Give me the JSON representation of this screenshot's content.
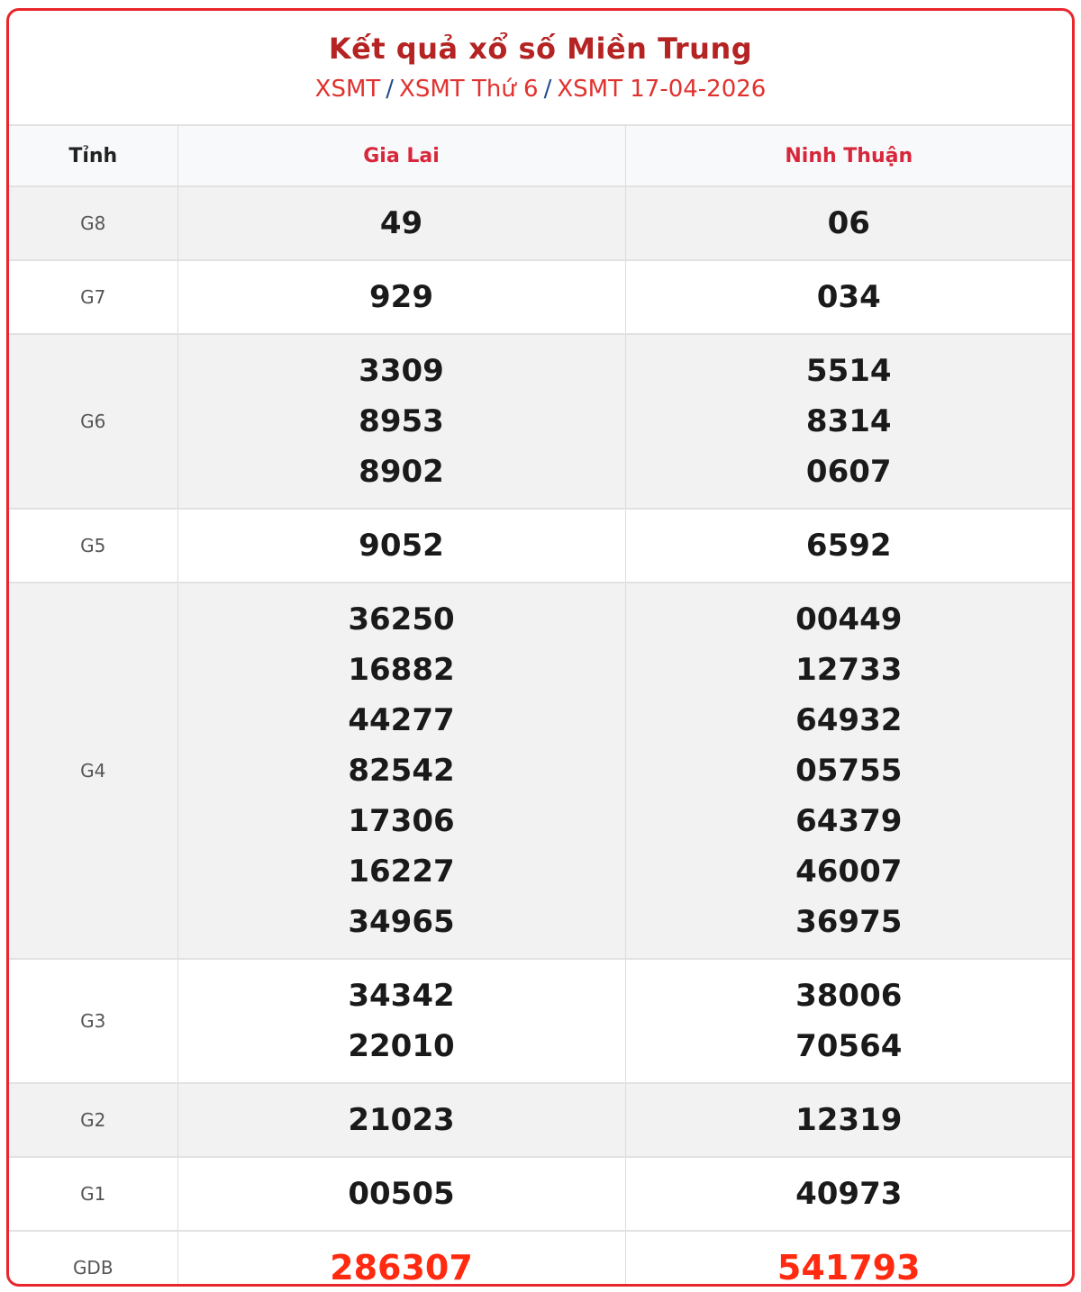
{
  "header": {
    "title": "Kết quả xổ số Miền Trung",
    "breadcrumb": [
      {
        "label": "XSMT"
      },
      {
        "label": "XSMT Thứ 6"
      },
      {
        "label": "XSMT 17-04-2026"
      }
    ],
    "separator": "/"
  },
  "table": {
    "columns": [
      "Tỉnh",
      "Gia Lai",
      "Ninh Thuận"
    ],
    "rows": [
      {
        "prize": "G8",
        "shaded": true,
        "values": [
          [
            "49"
          ],
          [
            "06"
          ]
        ]
      },
      {
        "prize": "G7",
        "shaded": false,
        "values": [
          [
            "929"
          ],
          [
            "034"
          ]
        ]
      },
      {
        "prize": "G6",
        "shaded": true,
        "values": [
          [
            "3309",
            "8953",
            "8902"
          ],
          [
            "5514",
            "8314",
            "0607"
          ]
        ]
      },
      {
        "prize": "G5",
        "shaded": false,
        "values": [
          [
            "9052"
          ],
          [
            "6592"
          ]
        ]
      },
      {
        "prize": "G4",
        "shaded": true,
        "values": [
          [
            "36250",
            "16882",
            "44277",
            "82542",
            "17306",
            "16227",
            "34965"
          ],
          [
            "00449",
            "12733",
            "64932",
            "05755",
            "64379",
            "46007",
            "36975"
          ]
        ]
      },
      {
        "prize": "G3",
        "shaded": false,
        "values": [
          [
            "34342",
            "22010"
          ],
          [
            "38006",
            "70564"
          ]
        ]
      },
      {
        "prize": "G2",
        "shaded": true,
        "values": [
          [
            "21023"
          ],
          [
            "12319"
          ]
        ]
      },
      {
        "prize": "G1",
        "shaded": false,
        "values": [
          [
            "00505"
          ],
          [
            "40973"
          ]
        ]
      },
      {
        "prize": "GDB",
        "shaded": false,
        "special": true,
        "values": [
          [
            "286307"
          ],
          [
            "541793"
          ]
        ]
      }
    ]
  },
  "colors": {
    "border": "#e8262c",
    "title": "#b52323",
    "link": "#e0322f",
    "special": "#ff2a10"
  }
}
